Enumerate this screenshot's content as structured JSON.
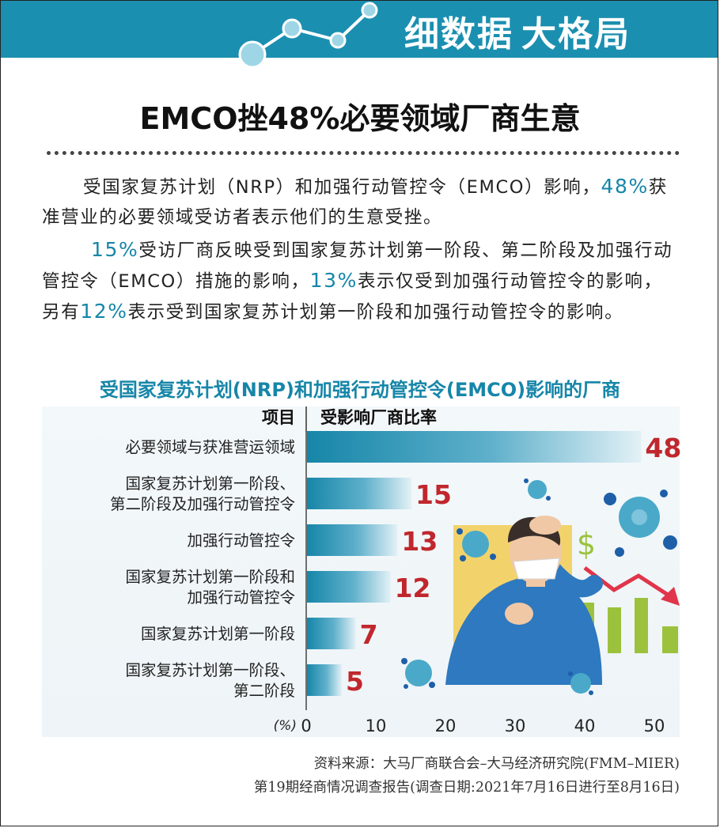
{
  "banner": {
    "title_part1": "细数据",
    "title_part2": "大格局"
  },
  "headline": "EMCO挫48%必要领域厂商生意",
  "paragraph1": {
    "text_a": "受国家复苏计划（NRP）和加强行动管控令（EMCO）影响，",
    "hl_a": "48%",
    "text_b": "获准营业的必要领域受访者表示他们的生意受挫。"
  },
  "paragraph2": {
    "hl_a": "15%",
    "text_a": "受访厂商反映受到国家复苏计划第一阶段、第二阶段及加强行动管控令（EMCO）措施的影响，",
    "hl_b": "13%",
    "text_b": "表示仅受到加强行动管控令的影响，另有",
    "hl_c": "12%",
    "text_c": "表示受到国家复苏计划第一阶段和加强行动管控令的影响。"
  },
  "chart_title": "受国家复苏计划(NRP)和加强行动管控令(EMCO)影响的厂商",
  "chart_data": {
    "type": "bar",
    "orientation": "horizontal",
    "column_headers": {
      "item": "项目",
      "value": "受影响厂商比率"
    },
    "categories": [
      [
        "必要领域与获准营运领域"
      ],
      [
        "国家复苏计划第一阶段、",
        "第二阶段及加强行动管控令"
      ],
      [
        "加强行动管控令"
      ],
      [
        "国家复苏计划第一阶段和",
        "加强行动管控令"
      ],
      [
        "国家复苏计划第一阶段"
      ],
      [
        "国家复苏计划第一阶段、",
        "第二阶段"
      ]
    ],
    "values": [
      48,
      15,
      13,
      12,
      7,
      5
    ],
    "unit_label": "(%)",
    "xlim": [
      0,
      50
    ],
    "ticks": [
      "0",
      "10",
      "20",
      "30",
      "40",
      "50"
    ],
    "bar_color": "#1686a8",
    "value_color": "#c0272d"
  },
  "source": {
    "line1": "资料来源：大马厂商联合会–大马经济研究院(FMM–MIER)",
    "line2": "第19期经商情况调查报告(调查日期:2021年7月16日进行至8月16日)"
  },
  "colors": {
    "banner": "#1b8fb0",
    "accent": "#1686a8",
    "value": "#c0272d"
  }
}
